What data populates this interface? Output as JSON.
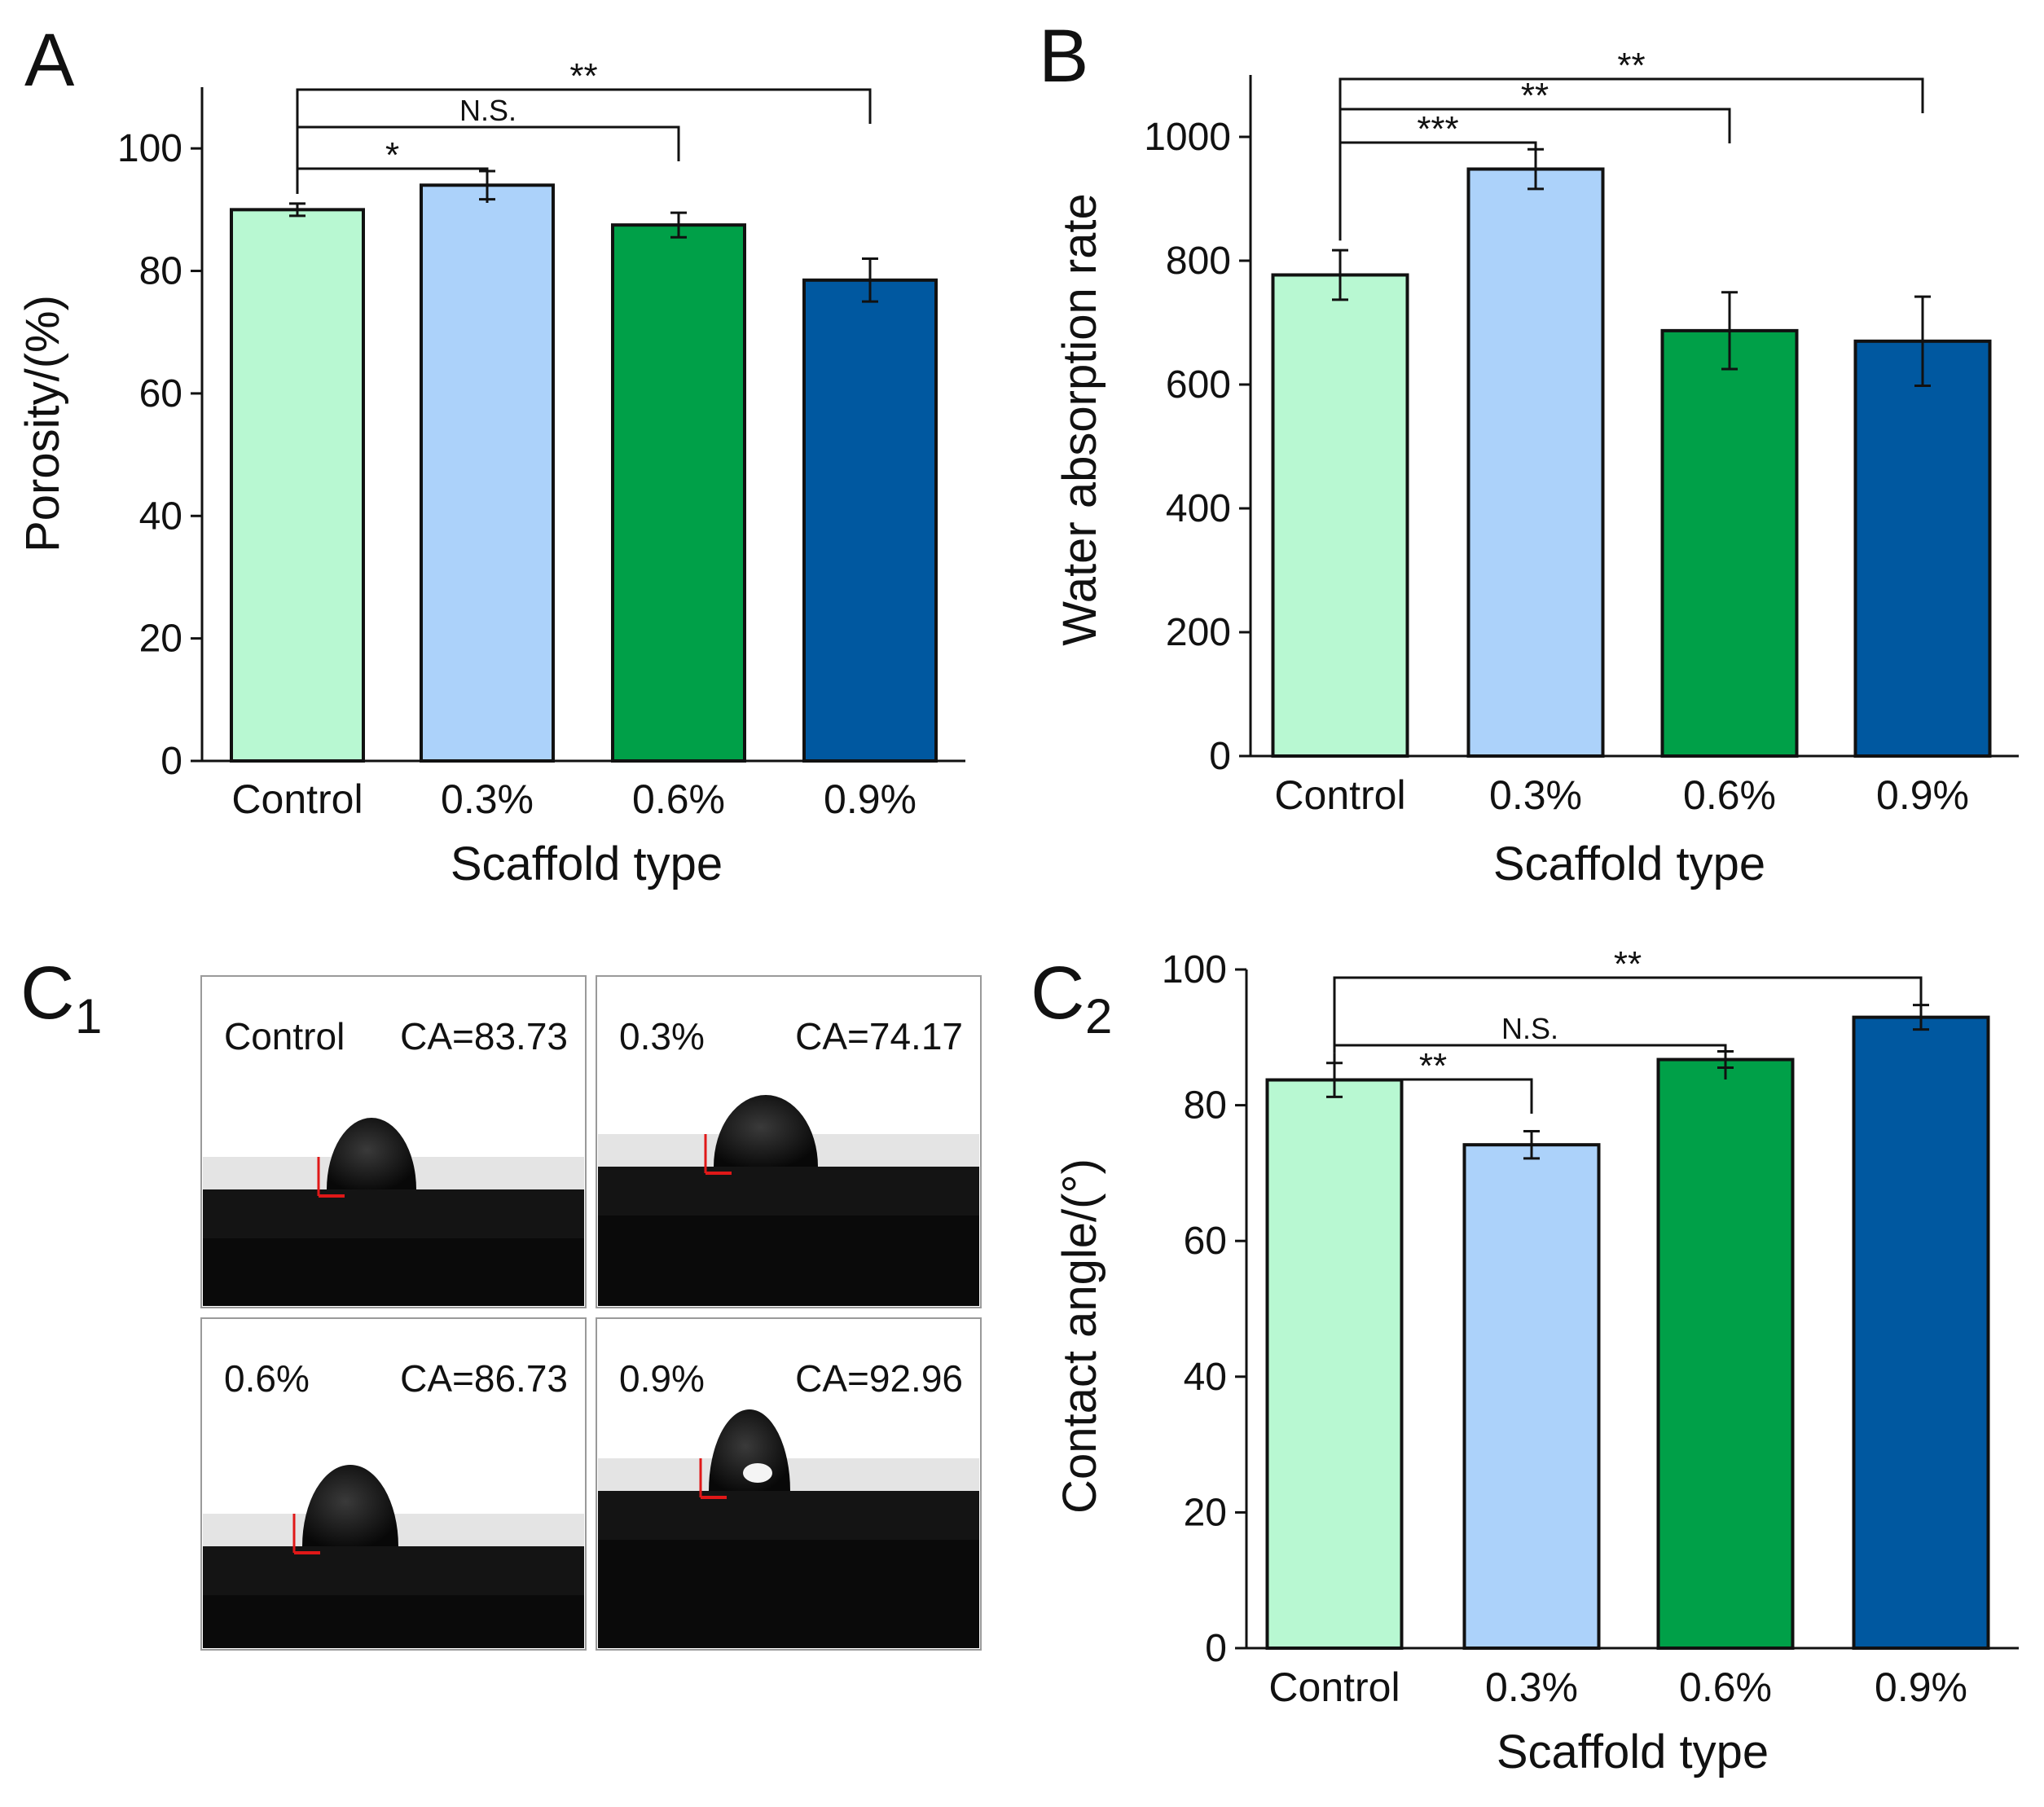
{
  "panels": {
    "A": "A",
    "B": "B",
    "C1": "C",
    "C1_sub": "1",
    "C2": "C",
    "C2_sub": "2"
  },
  "colors": {
    "control": "#b8f8d2",
    "p03": "#acd2fa",
    "p06": "#00a048",
    "p09": "#0058a0",
    "axis": "#111111",
    "marker": "#e01818"
  },
  "photos": [
    {
      "label": "Control",
      "ca": "CA=83.73"
    },
    {
      "label": "0.3%",
      "ca": "CA=74.17"
    },
    {
      "label": "0.6%",
      "ca": "CA=86.73"
    },
    {
      "label": "0.9%",
      "ca": "CA=92.96"
    }
  ],
  "chart_data": [
    {
      "id": "A",
      "type": "bar",
      "title": "",
      "categories": [
        "Control",
        "0.3%",
        "0.6%",
        "0.9%"
      ],
      "values": [
        90,
        94,
        87.5,
        78.5
      ],
      "errors": [
        1.0,
        2.3,
        2.0,
        3.5
      ],
      "xlabel": "Scaffold type",
      "ylabel": "Porosity/(%)",
      "ylim": [
        0,
        110
      ],
      "yticks": [
        0,
        20,
        40,
        60,
        80,
        100
      ],
      "grid": false,
      "significance": [
        {
          "from": 0,
          "to": 1,
          "label": "*",
          "level": 1
        },
        {
          "from": 0,
          "to": 2,
          "label": "N.S.",
          "level": 2
        },
        {
          "from": 0,
          "to": 3,
          "label": "**",
          "level": 3
        }
      ]
    },
    {
      "id": "B",
      "type": "bar",
      "title": "",
      "categories": [
        "Control",
        "0.3%",
        "0.6%",
        "0.9%"
      ],
      "values": [
        777,
        948,
        687,
        670
      ],
      "errors": [
        40,
        32,
        62,
        72
      ],
      "xlabel": "Scaffold type",
      "ylabel": "Water absorption rate",
      "ylim": [
        0,
        1100
      ],
      "yticks": [
        0,
        200,
        400,
        600,
        800,
        1000
      ],
      "grid": false,
      "significance": [
        {
          "from": 0,
          "to": 1,
          "label": "***",
          "level": 1
        },
        {
          "from": 0,
          "to": 2,
          "label": "**",
          "level": 2
        },
        {
          "from": 0,
          "to": 3,
          "label": "**",
          "level": 3
        }
      ]
    },
    {
      "id": "C2",
      "type": "bar",
      "title": "",
      "categories": [
        "Control",
        "0.3%",
        "0.6%",
        "0.9%"
      ],
      "values": [
        83.73,
        74.17,
        86.73,
        92.96
      ],
      "errors": [
        2.5,
        2.0,
        1.2,
        1.8
      ],
      "xlabel": "Scaffold type",
      "ylabel": "Contact angle/(°)",
      "ylim": [
        0,
        100
      ],
      "yticks": [
        0,
        20,
        40,
        60,
        80,
        100
      ],
      "grid": false,
      "significance": [
        {
          "from": 0,
          "to": 1,
          "label": "**",
          "level": 1
        },
        {
          "from": 0,
          "to": 2,
          "label": "N.S.",
          "level": 2
        },
        {
          "from": 0,
          "to": 3,
          "label": "**",
          "level": 3
        }
      ]
    }
  ]
}
